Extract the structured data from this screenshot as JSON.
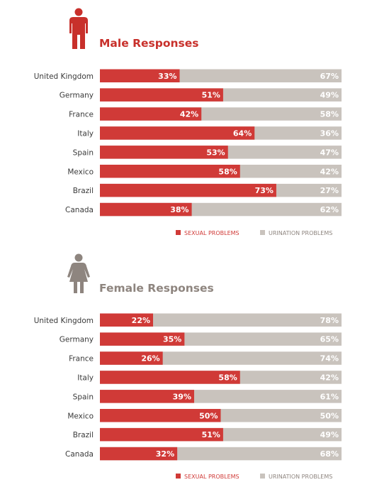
{
  "colors": {
    "sexual": "#d03a37",
    "urination": "#c9c3bd",
    "male_title": "#c8302b",
    "female_title": "#8e857f"
  },
  "icons": {
    "male": "male-figure-icon",
    "female": "female-figure-icon"
  },
  "male": {
    "title": "Male Responses"
  },
  "female": {
    "title": "Female Responses"
  },
  "legend": {
    "sexual": "SEXUAL PROBLEMS",
    "urination": "URINATION PROBLEMS"
  },
  "chart_data": [
    {
      "type": "bar",
      "orientation": "horizontal",
      "stacked": true,
      "title": "Male Responses",
      "categories": [
        "United Kingdom",
        "Germany",
        "France",
        "Italy",
        "Spain",
        "Mexico",
        "Brazil",
        "Canada"
      ],
      "series": [
        {
          "name": "SEXUAL PROBLEMS",
          "values": [
            33,
            51,
            42,
            64,
            53,
            58,
            73,
            38
          ]
        },
        {
          "name": "URINATION PROBLEMS",
          "values": [
            67,
            49,
            58,
            36,
            47,
            42,
            27,
            62
          ]
        }
      ],
      "unit": "%",
      "xlim": [
        0,
        100
      ],
      "legend_position": "bottom-right",
      "grid": false
    },
    {
      "type": "bar",
      "orientation": "horizontal",
      "stacked": true,
      "title": "Female Responses",
      "categories": [
        "United Kingdom",
        "Germany",
        "France",
        "Italy",
        "Spain",
        "Mexico",
        "Brazil",
        "Canada"
      ],
      "series": [
        {
          "name": "SEXUAL PROBLEMS",
          "values": [
            22,
            35,
            26,
            58,
            39,
            50,
            51,
            32
          ]
        },
        {
          "name": "URINATION PROBLEMS",
          "values": [
            78,
            65,
            74,
            42,
            61,
            50,
            49,
            68
          ]
        }
      ],
      "unit": "%",
      "xlim": [
        0,
        100
      ],
      "legend_position": "bottom-right",
      "grid": false
    }
  ]
}
